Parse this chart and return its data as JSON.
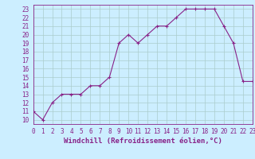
{
  "x": [
    0,
    1,
    2,
    3,
    4,
    5,
    6,
    7,
    8,
    9,
    10,
    11,
    12,
    13,
    14,
    15,
    16,
    17,
    18,
    19,
    20,
    21,
    22,
    23
  ],
  "y": [
    11,
    10,
    12,
    13,
    13,
    13,
    14,
    14,
    15,
    19,
    20,
    19,
    20,
    21,
    21,
    22,
    23,
    23,
    23,
    23,
    21,
    19,
    14.5,
    14.5
  ],
  "line_color": "#882288",
  "marker": "+",
  "marker_size": 3,
  "linewidth": 0.8,
  "xlabel": "Windchill (Refroidissement éolien,°C)",
  "xlabel_fontsize": 6.5,
  "ytick_labels": [
    "10",
    "11",
    "12",
    "13",
    "14",
    "15",
    "16",
    "17",
    "18",
    "19",
    "20",
    "21",
    "22",
    "23"
  ],
  "ytick_vals": [
    10,
    11,
    12,
    13,
    14,
    15,
    16,
    17,
    18,
    19,
    20,
    21,
    22,
    23
  ],
  "xtick_labels": [
    "0",
    "1",
    "2",
    "3",
    "4",
    "5",
    "6",
    "7",
    "8",
    "9",
    "10",
    "11",
    "12",
    "13",
    "14",
    "15",
    "16",
    "17",
    "18",
    "19",
    "20",
    "21",
    "22",
    "23"
  ],
  "xlim": [
    0,
    23
  ],
  "ylim": [
    9.5,
    23.5
  ],
  "background_color": "#cceeff",
  "grid_color": "#aacccc",
  "tick_fontsize": 5.5,
  "marker_edge_width": 0.8
}
